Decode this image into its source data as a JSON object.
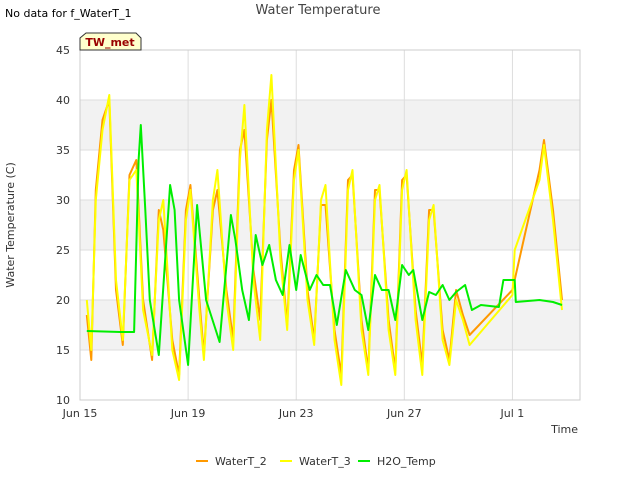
{
  "notice": "No data for f_WaterT_1",
  "site_badge": "TW_met",
  "chart_data": {
    "type": "line",
    "title": "Water Temperature",
    "xlabel": "Time",
    "ylabel": "Water Temperature (C)",
    "x_unit": "date",
    "xlim": [
      "Jun 15",
      "Jul 3.5"
    ],
    "ylim": [
      10,
      45
    ],
    "x_tick_labels": [
      "Jun 15",
      "Jun 19",
      "Jun 23",
      "Jun 27",
      "Jul 1"
    ],
    "y_ticks": [
      10,
      15,
      20,
      25,
      30,
      35,
      40,
      45
    ],
    "grid": true,
    "background_bands": "alternating light gray",
    "legend_position": "bottom",
    "series": [
      {
        "name": "WaterT_2",
        "color": "#ff9900",
        "points": [
          [
            "2024-06-15T06:00",
            18.5
          ],
          [
            "2024-06-15T10:00",
            14
          ],
          [
            "2024-06-15T14:00",
            31
          ],
          [
            "2024-06-15T20:00",
            38
          ],
          [
            "2024-06-16T02:00",
            40
          ],
          [
            "2024-06-16T08:00",
            21
          ],
          [
            "2024-06-16T14:00",
            15.5
          ],
          [
            "2024-06-16T20:00",
            32.5
          ],
          [
            "2024-06-17T02:00",
            34
          ],
          [
            "2024-06-17T08:00",
            20
          ],
          [
            "2024-06-17T16:00",
            14
          ],
          [
            "2024-06-17T22:00",
            29
          ],
          [
            "2024-06-18T02:00",
            27
          ],
          [
            "2024-06-18T10:00",
            16
          ],
          [
            "2024-06-18T16:00",
            12.5
          ],
          [
            "2024-06-18T22:00",
            29
          ],
          [
            "2024-06-19T02:00",
            31.5
          ],
          [
            "2024-06-19T10:00",
            20
          ],
          [
            "2024-06-19T14:00",
            14.5
          ],
          [
            "2024-06-19T22:00",
            29
          ],
          [
            "2024-06-20T02:00",
            31
          ],
          [
            "2024-06-20T10:00",
            21
          ],
          [
            "2024-06-20T16:00",
            16
          ],
          [
            "2024-06-20T22:00",
            35
          ],
          [
            "2024-06-21T02:00",
            37
          ],
          [
            "2024-06-21T10:00",
            23
          ],
          [
            "2024-06-21T16:00",
            18
          ],
          [
            "2024-06-21T22:00",
            36
          ],
          [
            "2024-06-22T02:00",
            40
          ],
          [
            "2024-06-22T10:00",
            25
          ],
          [
            "2024-06-22T16:00",
            17.5
          ],
          [
            "2024-06-22T22:00",
            33
          ],
          [
            "2024-06-23T02:00",
            35.5
          ],
          [
            "2024-06-23T10:00",
            21
          ],
          [
            "2024-06-23T16:00",
            16
          ],
          [
            "2024-06-23T22:00",
            29.5
          ],
          [
            "2024-06-24T02:00",
            29.5
          ],
          [
            "2024-06-24T10:00",
            17
          ],
          [
            "2024-06-24T16:00",
            12.5
          ],
          [
            "2024-06-24T22:00",
            32
          ],
          [
            "2024-06-25T02:00",
            32.5
          ],
          [
            "2024-06-25T10:00",
            18
          ],
          [
            "2024-06-25T16:00",
            13
          ],
          [
            "2024-06-25T22:00",
            31
          ],
          [
            "2024-06-26T02:00",
            31
          ],
          [
            "2024-06-26T10:00",
            18
          ],
          [
            "2024-06-26T16:00",
            13
          ],
          [
            "2024-06-26T22:00",
            32
          ],
          [
            "2024-06-27T02:00",
            32.5
          ],
          [
            "2024-06-27T10:00",
            19
          ],
          [
            "2024-06-27T16:00",
            13.5
          ],
          [
            "2024-06-27T22:00",
            29
          ],
          [
            "2024-06-28T02:00",
            29
          ],
          [
            "2024-06-28T10:00",
            17
          ],
          [
            "2024-06-28T16:00",
            14
          ],
          [
            "2024-06-28T22:00",
            21
          ],
          [
            "2024-06-29T04:00",
            18.5
          ],
          [
            "2024-06-29T10:00",
            16.5
          ],
          [
            "2024-07-01T00:00",
            21
          ],
          [
            "2024-07-01T12:00",
            27
          ],
          [
            "2024-07-02T00:00",
            33
          ],
          [
            "2024-07-02T04:00",
            36
          ],
          [
            "2024-07-02T12:00",
            29
          ],
          [
            "2024-07-02T20:00",
            20
          ]
        ]
      },
      {
        "name": "WaterT_3",
        "color": "#ffff00",
        "points": [
          [
            "2024-06-15T06:00",
            20
          ],
          [
            "2024-06-15T10:00",
            15
          ],
          [
            "2024-06-15T14:00",
            30
          ],
          [
            "2024-06-15T20:00",
            37
          ],
          [
            "2024-06-16T02:00",
            40.5
          ],
          [
            "2024-06-16T08:00",
            22
          ],
          [
            "2024-06-16T14:00",
            16
          ],
          [
            "2024-06-16T20:00",
            32
          ],
          [
            "2024-06-17T02:00",
            33
          ],
          [
            "2024-06-17T08:00",
            19
          ],
          [
            "2024-06-17T16:00",
            14.5
          ],
          [
            "2024-06-17T22:00",
            28
          ],
          [
            "2024-06-18T02:00",
            30
          ],
          [
            "2024-06-18T10:00",
            15
          ],
          [
            "2024-06-18T16:00",
            12
          ],
          [
            "2024-06-18T22:00",
            28
          ],
          [
            "2024-06-19T02:00",
            31
          ],
          [
            "2024-06-19T10:00",
            19
          ],
          [
            "2024-06-19T14:00",
            14
          ],
          [
            "2024-06-19T22:00",
            30
          ],
          [
            "2024-06-20T02:00",
            33
          ],
          [
            "2024-06-20T10:00",
            20
          ],
          [
            "2024-06-20T16:00",
            15
          ],
          [
            "2024-06-20T22:00",
            34
          ],
          [
            "2024-06-21T02:00",
            39.5
          ],
          [
            "2024-06-21T10:00",
            22
          ],
          [
            "2024-06-21T16:00",
            16
          ],
          [
            "2024-06-21T22:00",
            37
          ],
          [
            "2024-06-22T02:00",
            42.5
          ],
          [
            "2024-06-22T10:00",
            24
          ],
          [
            "2024-06-22T16:00",
            17
          ],
          [
            "2024-06-22T22:00",
            32
          ],
          [
            "2024-06-23T02:00",
            35
          ],
          [
            "2024-06-23T10:00",
            20
          ],
          [
            "2024-06-23T16:00",
            15.5
          ],
          [
            "2024-06-23T22:00",
            30
          ],
          [
            "2024-06-24T02:00",
            31.5
          ],
          [
            "2024-06-24T10:00",
            16
          ],
          [
            "2024-06-24T16:00",
            11.5
          ],
          [
            "2024-06-24T22:00",
            31
          ],
          [
            "2024-06-25T02:00",
            33
          ],
          [
            "2024-06-25T10:00",
            17
          ],
          [
            "2024-06-25T16:00",
            12.5
          ],
          [
            "2024-06-25T22:00",
            30
          ],
          [
            "2024-06-26T02:00",
            31.5
          ],
          [
            "2024-06-26T10:00",
            17
          ],
          [
            "2024-06-26T16:00",
            12.5
          ],
          [
            "2024-06-26T22:00",
            31
          ],
          [
            "2024-06-27T02:00",
            33
          ],
          [
            "2024-06-27T10:00",
            18
          ],
          [
            "2024-06-27T16:00",
            12.5
          ],
          [
            "2024-06-27T22:00",
            28
          ],
          [
            "2024-06-28T02:00",
            29.5
          ],
          [
            "2024-06-28T10:00",
            16
          ],
          [
            "2024-06-28T16:00",
            13.5
          ],
          [
            "2024-06-28T22:00",
            20
          ],
          [
            "2024-06-29T04:00",
            18
          ],
          [
            "2024-06-29T10:00",
            15.5
          ],
          [
            "2024-07-01T00:00",
            20.5
          ],
          [
            "2024-07-01T02:00",
            25
          ],
          [
            "2024-07-02T00:00",
            32
          ],
          [
            "2024-07-02T04:00",
            35.5
          ],
          [
            "2024-07-02T12:00",
            28
          ],
          [
            "2024-07-02T20:00",
            19
          ]
        ]
      },
      {
        "name": "H2O_Temp",
        "color": "#00ee00",
        "points": [
          [
            "2024-06-15T06:00",
            16.9
          ],
          [
            "2024-06-16T12:00",
            16.8
          ],
          [
            "2024-06-17T00:00",
            16.8
          ],
          [
            "2024-06-17T04:00",
            34
          ],
          [
            "2024-06-17T06:00",
            37.5
          ],
          [
            "2024-06-17T10:00",
            29
          ],
          [
            "2024-06-17T14:00",
            20
          ],
          [
            "2024-06-17T22:00",
            14.5
          ],
          [
            "2024-06-18T08:00",
            31.5
          ],
          [
            "2024-06-18T12:00",
            29
          ],
          [
            "2024-06-18T16:00",
            20
          ],
          [
            "2024-06-19T00:00",
            13.5
          ],
          [
            "2024-06-19T08:00",
            29.5
          ],
          [
            "2024-06-19T16:00",
            20
          ],
          [
            "2024-06-20T04:00",
            15.8
          ],
          [
            "2024-06-20T14:00",
            28.5
          ],
          [
            "2024-06-20T18:00",
            26
          ],
          [
            "2024-06-21T00:00",
            21
          ],
          [
            "2024-06-21T06:00",
            18
          ],
          [
            "2024-06-21T12:00",
            26.5
          ],
          [
            "2024-06-21T18:00",
            23.5
          ],
          [
            "2024-06-22T00:00",
            25.5
          ],
          [
            "2024-06-22T06:00",
            22
          ],
          [
            "2024-06-22T12:00",
            20.5
          ],
          [
            "2024-06-22T18:00",
            25.5
          ],
          [
            "2024-06-23T00:00",
            21
          ],
          [
            "2024-06-23T04:00",
            24.5
          ],
          [
            "2024-06-23T12:00",
            21
          ],
          [
            "2024-06-23T18:00",
            22.5
          ],
          [
            "2024-06-24T00:00",
            21.5
          ],
          [
            "2024-06-24T06:00",
            21.5
          ],
          [
            "2024-06-24T12:00",
            17.5
          ],
          [
            "2024-06-24T20:00",
            23
          ],
          [
            "2024-06-25T04:00",
            21
          ],
          [
            "2024-06-25T10:00",
            20.5
          ],
          [
            "2024-06-25T16:00",
            17
          ],
          [
            "2024-06-25T22:00",
            22.5
          ],
          [
            "2024-06-26T04:00",
            21
          ],
          [
            "2024-06-26T10:00",
            21
          ],
          [
            "2024-06-26T16:00",
            18
          ],
          [
            "2024-06-26T22:00",
            23.5
          ],
          [
            "2024-06-27T04:00",
            22.5
          ],
          [
            "2024-06-27T08:00",
            23
          ],
          [
            "2024-06-27T16:00",
            18
          ],
          [
            "2024-06-27T22:00",
            20.8
          ],
          [
            "2024-06-28T04:00",
            20.5
          ],
          [
            "2024-06-28T10:00",
            21.5
          ],
          [
            "2024-06-28T16:00",
            20
          ],
          [
            "2024-06-28T22:00",
            20.8
          ],
          [
            "2024-06-29T06:00",
            21.5
          ],
          [
            "2024-06-29T12:00",
            19
          ],
          [
            "2024-06-29T20:00",
            19.5
          ],
          [
            "2024-06-30T12:00",
            19.3
          ],
          [
            "2024-06-30T16:00",
            22
          ],
          [
            "2024-07-01T00:00",
            22
          ],
          [
            "2024-07-01T02:00",
            22
          ],
          [
            "2024-07-01T03:00",
            19.8
          ],
          [
            "2024-07-02T00:00",
            20
          ],
          [
            "2024-07-02T12:00",
            19.8
          ],
          [
            "2024-07-02T20:00",
            19.5
          ]
        ]
      }
    ]
  }
}
